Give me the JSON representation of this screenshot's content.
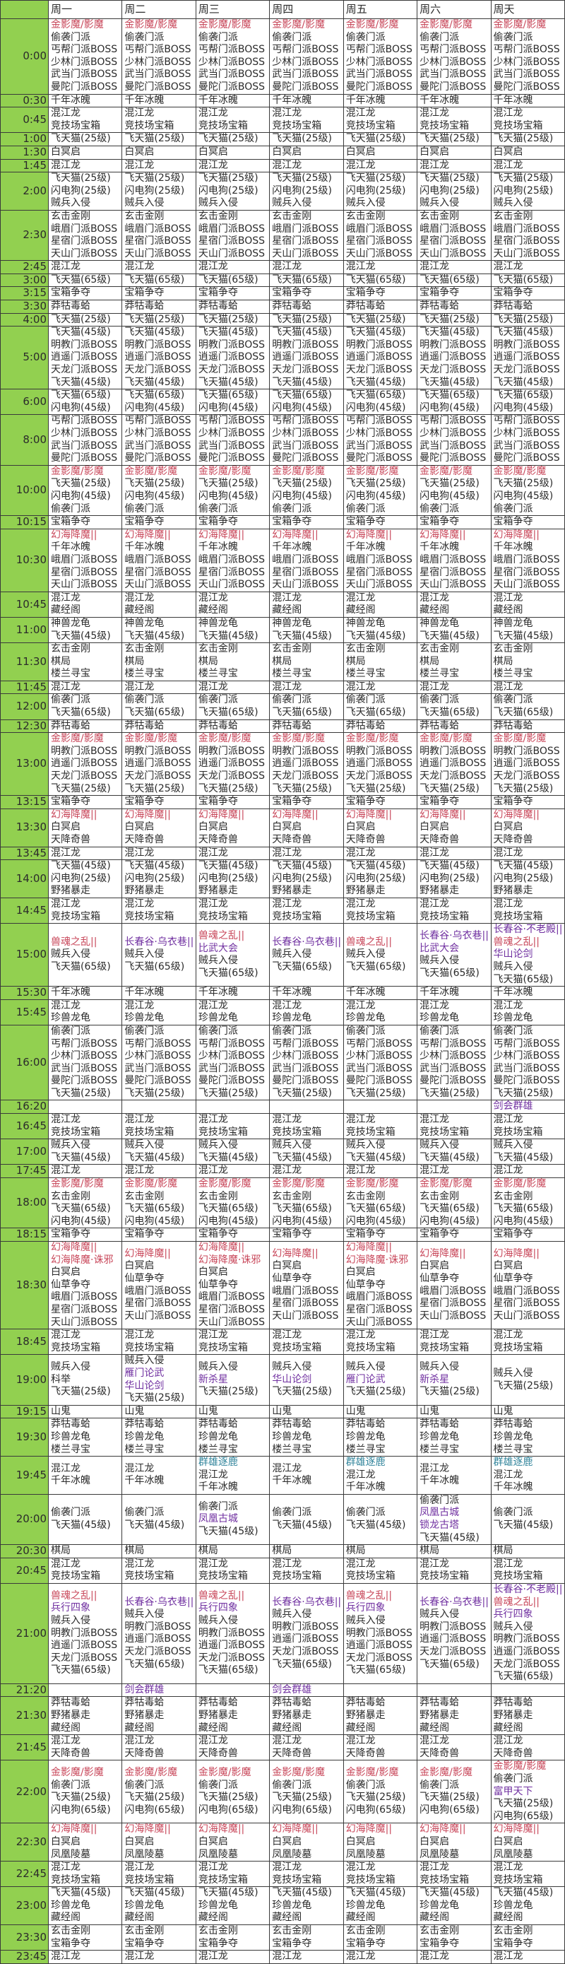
{
  "days": [
    "周一",
    "周二",
    "周三",
    "周四",
    "周五",
    "周六",
    "周天"
  ],
  "colors": {
    "red": "#c8475a",
    "purple": "#7030a0",
    "teal": "#31849b",
    "time_column": "#92d050"
  },
  "highlight": {
    "金影魔/影魔": "red",
    "幻海降魔||": "red",
    "幻海降魔·诛邪": "red",
    "兽魂之乱||": "red",
    "长春谷·乌衣巷||": "purple",
    "长春谷·不老殿||": "purple",
    "比武大会": "purple",
    "华山论剑": "purple",
    "雁门论武": "purple",
    "新杀星": "purple",
    "凤凰古城": "purple",
    "锁龙古塔": "purple",
    "兵行四象": "purple",
    "剑会群雄": "purple",
    "富甲天下": "purple",
    "群雄逐鹿": "teal"
  },
  "rows": [
    {
      "time": "0:00",
      "all": [
        "金影魔/影魔",
        "偷袭门派",
        "丐帮门派BOSS",
        "少林门派BOSS",
        "武当门派BOSS",
        "曼陀门派BOSS"
      ]
    },
    {
      "time": "0:30",
      "all": [
        "千年冰魄"
      ]
    },
    {
      "time": "0:45",
      "all": [
        "混江龙",
        "竞技场宝箱"
      ]
    },
    {
      "time": "1:00",
      "all": [
        "飞天猫(25级)"
      ]
    },
    {
      "time": "1:30",
      "all": [
        "白冥启"
      ]
    },
    {
      "time": "1:45",
      "all": [
        "混江龙"
      ]
    },
    {
      "time": "2:00",
      "all": [
        "飞天猫(25级)",
        "闪电狗(25级)",
        "贼兵入侵"
      ]
    },
    {
      "time": "2:30",
      "all": [
        "玄击金刚",
        "峨眉门派BOSS",
        "星宿门派BOSS",
        "天山门派BOSS"
      ]
    },
    {
      "time": "2:45",
      "all": [
        "混江龙"
      ]
    },
    {
      "time": "3:00",
      "all": [
        "飞天猫(65级)"
      ]
    },
    {
      "time": "3:15",
      "all": [
        "宝箱争夺"
      ]
    },
    {
      "time": "3:30",
      "all": [
        "莽牯毒蛤"
      ]
    },
    {
      "time": "4:00",
      "all": [
        "飞天猫(25级)"
      ]
    },
    {
      "time": "5:00",
      "all": [
        "飞天猫(45级)",
        "明教门派BOSS",
        "逍遥门派BOSS",
        "天龙门派BOSS",
        "飞天猫(45级)"
      ]
    },
    {
      "time": "6:00",
      "all": [
        "飞天猫(65级)",
        "闪电狗(45级)"
      ]
    },
    {
      "time": "8:00",
      "all": [
        "丐帮门派BOSS",
        "少林门派BOSS",
        "武当门派BOSS",
        "曼陀门派BOSS"
      ]
    },
    {
      "time": "10:00",
      "all": [
        "金影魔/影魔",
        "飞天猫(25级)",
        "闪电狗(45级)",
        "偷袭门派"
      ]
    },
    {
      "time": "10:15",
      "all": [
        "宝箱争夺"
      ]
    },
    {
      "time": "10:30",
      "all": [
        "幻海降魔||",
        "千年冰魄",
        "峨眉门派BOSS",
        "星宿门派BOSS",
        "天山门派BOSS"
      ]
    },
    {
      "time": "10:45",
      "all": [
        "混江龙",
        "藏经阁"
      ]
    },
    {
      "time": "11:00",
      "all": [
        "神兽龙龟",
        "飞天猫(45级)"
      ]
    },
    {
      "time": "11:30",
      "all": [
        "玄击金刚",
        "棋局",
        "楼兰寻宝"
      ]
    },
    {
      "time": "11:45",
      "all": [
        "混江龙"
      ]
    },
    {
      "time": "12:00",
      "all": [
        "偷袭门派",
        "飞天猫(65级)"
      ]
    },
    {
      "time": "12:30",
      "all": [
        "莽牯毒蛤"
      ]
    },
    {
      "time": "13:00",
      "all": [
        "金影魔/影魔",
        "明教门派BOSS",
        "逍遥门派BOSS",
        "天龙门派BOSS",
        "飞天猫(25级)"
      ]
    },
    {
      "time": "13:15",
      "all": [
        "宝箱争夺"
      ]
    },
    {
      "time": "13:30",
      "all": [
        "幻海降魔||",
        "白冥启",
        "天降奇兽"
      ]
    },
    {
      "time": "13:45",
      "all": [
        "混江龙"
      ]
    },
    {
      "time": "14:00",
      "all": [
        "飞天猫(45级)",
        "闪电狗(25级)",
        "野猪暴走"
      ]
    },
    {
      "time": "14:45",
      "all": [
        "混江龙",
        "竞技场宝箱"
      ]
    },
    {
      "time": "15:00",
      "cells": [
        [
          "兽魂之乱||",
          "贼兵入侵",
          "飞天猫(65级)"
        ],
        [
          "长春谷·乌衣巷||",
          "贼兵入侵",
          "飞天猫(65级)"
        ],
        [
          "兽魂之乱||",
          "比武大会",
          "贼兵入侵",
          "飞天猫(65级)"
        ],
        [
          "长春谷·乌衣巷||",
          "贼兵入侵",
          "飞天猫(65级)"
        ],
        [
          "兽魂之乱||",
          "贼兵入侵",
          "飞天猫(65级)"
        ],
        [
          "长春谷·乌衣巷||",
          "比武大会",
          "贼兵入侵",
          "飞天猫(65级)"
        ],
        [
          "长春谷·不老殿||",
          "兽魂之乱||",
          "华山论剑",
          "贼兵入侵",
          "飞天猫(65级)"
        ]
      ]
    },
    {
      "time": "15:30",
      "all": [
        "千年冰魄"
      ]
    },
    {
      "time": "15:45",
      "all": [
        "混江龙",
        "珍兽龙龟"
      ]
    },
    {
      "time": "16:00",
      "all": [
        "偷袭门派",
        "丐帮门派BOSS",
        "少林门派BOSS",
        "武当门派BOSS",
        "曼陀门派BOSS",
        "飞天猫(25级)"
      ]
    },
    {
      "time": "16:20",
      "cells": [
        [],
        [],
        [],
        [],
        [],
        [],
        [
          "剑会群雄"
        ]
      ]
    },
    {
      "time": "16:45",
      "all": [
        "混江龙",
        "竞技场宝箱"
      ]
    },
    {
      "time": "17:00",
      "all": [
        "贼兵入侵",
        "飞天猫(45级)"
      ]
    },
    {
      "time": "17:45",
      "all": [
        "混江龙"
      ]
    },
    {
      "time": "18:00",
      "all": [
        "金影魔/影魔",
        "玄击金刚",
        "飞天猫(65级)",
        "闪电狗(45级)"
      ]
    },
    {
      "time": "18:15",
      "all": [
        "宝箱争夺"
      ]
    },
    {
      "time": "18:30",
      "cells": [
        [
          "幻海降魔||",
          "幻海降魔·诛邪",
          "白冥启",
          "仙草争夺",
          "峨眉门派BOSS",
          "星宿门派BOSS",
          "天山门派BOSS"
        ],
        [
          "幻海降魔||",
          "白冥启",
          "仙草争夺",
          "峨眉门派BOSS",
          "星宿门派BOSS",
          "天山门派BOSS"
        ],
        [
          "幻海降魔||",
          "幻海降魔·诛邪",
          "白冥启",
          "仙草争夺",
          "峨眉门派BOSS",
          "星宿门派BOSS",
          "天山门派BOSS"
        ],
        [
          "幻海降魔||",
          "白冥启",
          "仙草争夺",
          "峨眉门派BOSS",
          "星宿门派BOSS",
          "天山门派BOSS"
        ],
        [
          "幻海降魔||",
          "幻海降魔·诛邪",
          "白冥启",
          "仙草争夺",
          "峨眉门派BOSS",
          "星宿门派BOSS",
          "天山门派BOSS"
        ],
        [
          "幻海降魔||",
          "白冥启",
          "仙草争夺",
          "峨眉门派BOSS",
          "星宿门派BOSS",
          "天山门派BOSS"
        ],
        [
          "幻海降魔||",
          "白冥启",
          "仙草争夺",
          "峨眉门派BOSS",
          "星宿门派BOSS",
          "天山门派BOSS"
        ]
      ]
    },
    {
      "time": "18:45",
      "all": [
        "混江龙",
        "竞技场宝箱"
      ]
    },
    {
      "time": "19:00",
      "cells": [
        [
          "贼兵入侵",
          "科举",
          "飞天猫(25级)"
        ],
        [
          "贼兵入侵",
          "雁门论武",
          "华山论剑",
          "飞天猫(25级)"
        ],
        [
          "贼兵入侵",
          "新杀星",
          "飞天猫(25级)"
        ],
        [
          "贼兵入侵",
          "华山论剑",
          "飞天猫(25级)"
        ],
        [
          "贼兵入侵",
          "雁门论武",
          "飞天猫(25级)"
        ],
        [
          "贼兵入侵",
          "新杀星",
          "飞天猫(25级)"
        ],
        [
          "贼兵入侵",
          "飞天猫(25级)"
        ]
      ]
    },
    {
      "time": "19:15",
      "all": [
        "山鬼"
      ]
    },
    {
      "time": "19:30",
      "all": [
        "莽牯毒蛤",
        "珍兽龙龟",
        "楼兰寻宝"
      ]
    },
    {
      "time": "19:45",
      "cells": [
        [
          "混江龙",
          "千年冰魄"
        ],
        [
          "混江龙",
          "千年冰魄"
        ],
        [
          "群雄逐鹿",
          "混江龙",
          "千年冰魄"
        ],
        [
          "混江龙",
          "千年冰魄"
        ],
        [
          "群雄逐鹿",
          "混江龙",
          "千年冰魄"
        ],
        [
          "混江龙",
          "千年冰魄"
        ],
        [
          "群雄逐鹿",
          "混江龙",
          "千年冰魄"
        ]
      ]
    },
    {
      "time": "20:00",
      "cells": [
        [
          "偷袭门派",
          "飞天猫(45级)"
        ],
        [
          "偷袭门派",
          "飞天猫(45级)"
        ],
        [
          "偷袭门派",
          "凤凰古城",
          "飞天猫(45级)"
        ],
        [
          "偷袭门派",
          "飞天猫(45级)"
        ],
        [
          "偷袭门派",
          "飞天猫(45级)"
        ],
        [
          "偷袭门派",
          "凤凰古城",
          "锁龙古塔",
          "飞天猫(45级)"
        ],
        [
          "偷袭门派",
          "飞天猫(45级)"
        ]
      ]
    },
    {
      "time": "20:30",
      "all": [
        "棋局"
      ]
    },
    {
      "time": "20:45",
      "all": [
        "混江龙",
        "竞技场宝箱"
      ]
    },
    {
      "time": "21:00",
      "cells": [
        [
          "兽魂之乱||",
          "兵行四象",
          "贼兵入侵",
          "明教门派BOSS",
          "逍遥门派BOSS",
          "天龙门派BOSS",
          "飞天猫(65级)"
        ],
        [
          "长春谷·乌衣巷||",
          "贼兵入侵",
          "明教门派BOSS",
          "逍遥门派BOSS",
          "天龙门派BOSS",
          "飞天猫(65级)"
        ],
        [
          "兽魂之乱||",
          "兵行四象",
          "贼兵入侵",
          "明教门派BOSS",
          "逍遥门派BOSS",
          "天龙门派BOSS",
          "飞天猫(65级)"
        ],
        [
          "长春谷·乌衣巷||",
          "贼兵入侵",
          "明教门派BOSS",
          "逍遥门派BOSS",
          "天龙门派BOSS",
          "飞天猫(65级)"
        ],
        [
          "兽魂之乱||",
          "兵行四象",
          "贼兵入侵",
          "明教门派BOSS",
          "逍遥门派BOSS",
          "天龙门派BOSS",
          "飞天猫(65级)"
        ],
        [
          "长春谷·乌衣巷||",
          "贼兵入侵",
          "明教门派BOSS",
          "逍遥门派BOSS",
          "天龙门派BOSS",
          "飞天猫(65级)"
        ],
        [
          "长春谷·不老殿||",
          "兽魂之乱||",
          "兵行四象",
          "贼兵入侵",
          "明教门派BOSS",
          "逍遥门派BOSS",
          "天龙门派BOSS",
          "飞天猫(65级)"
        ]
      ]
    },
    {
      "time": "21:20",
      "cells": [
        [],
        [
          "剑会群雄"
        ],
        [],
        [
          "剑会群雄"
        ],
        [],
        [],
        []
      ]
    },
    {
      "time": "21:30",
      "all": [
        "莽牯毒蛤",
        "野猪暴走",
        "藏经阁"
      ]
    },
    {
      "time": "21:45",
      "all": [
        "混江龙",
        "天降奇兽"
      ]
    },
    {
      "time": "22:00",
      "cells": [
        [
          "金影魔/影魔",
          "偷袭门派",
          "飞天猫(25级)",
          "闪电狗(65级)"
        ],
        [
          "金影魔/影魔",
          "偷袭门派",
          "飞天猫(25级)",
          "闪电狗(65级)"
        ],
        [
          "金影魔/影魔",
          "偷袭门派",
          "飞天猫(25级)",
          "闪电狗(65级)"
        ],
        [
          "金影魔/影魔",
          "偷袭门派",
          "飞天猫(25级)",
          "闪电狗(65级)"
        ],
        [
          "金影魔/影魔",
          "偷袭门派",
          "飞天猫(25级)",
          "闪电狗(65级)"
        ],
        [
          "金影魔/影魔",
          "偷袭门派",
          "飞天猫(25级)",
          "闪电狗(65级)"
        ],
        [
          "金影魔/影魔",
          "偷袭门派",
          "富甲天下",
          "飞天猫(25级)",
          "闪电狗(65级)"
        ]
      ]
    },
    {
      "time": "22:30",
      "all": [
        "幻海降魔||",
        "白冥启",
        "凤凰陵墓"
      ]
    },
    {
      "time": "22:45",
      "all": [
        "混江龙",
        "竞技场宝箱"
      ]
    },
    {
      "time": "23:00",
      "all": [
        "飞天猫(45级)",
        "珍兽龙龟",
        "藏经阁"
      ]
    },
    {
      "time": "23:30",
      "all": [
        "玄击金刚",
        "宝箱争夺"
      ]
    },
    {
      "time": "23:45",
      "all": [
        "混江龙"
      ]
    }
  ]
}
